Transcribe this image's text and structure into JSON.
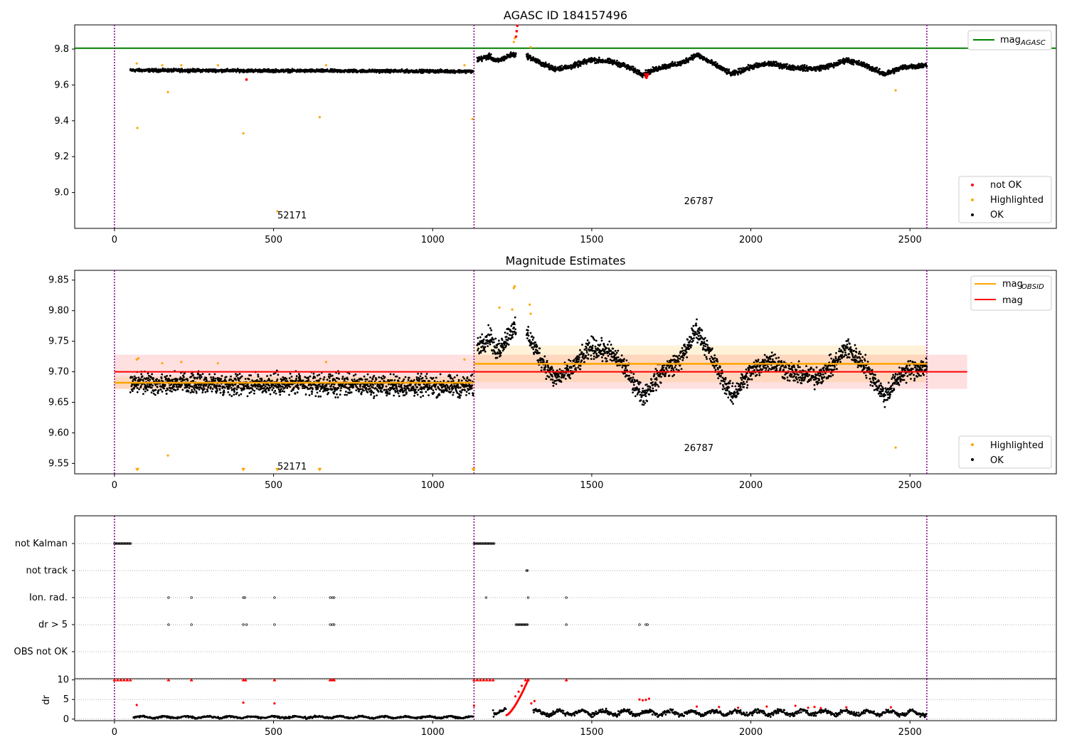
{
  "colors": {
    "ok": "#000000",
    "highlighted": "#ffa500",
    "not_ok": "#ff0000",
    "agasc_line": "#008000",
    "mag_line": "#ff0000",
    "obsid_line": "#ffa500",
    "obsid_vline": "#800080",
    "grid": "#b0b0b0"
  },
  "chart_data": [
    {
      "type": "scatter",
      "title": "AGASC ID 184157496",
      "xlabel": "",
      "ylabel": "",
      "xlim": [
        -125,
        2960
      ],
      "ylim": [
        8.8,
        9.935
      ],
      "xticks": [
        0,
        500,
        1000,
        1500,
        2000,
        2500
      ],
      "yticks": [
        9.0,
        9.2,
        9.4,
        9.6,
        9.8
      ],
      "ytick_labels": [
        "9.0",
        "9.2",
        "9.4",
        "9.6",
        "9.8"
      ],
      "hline": {
        "name": "mag_AGASC",
        "value": 9.805
      },
      "obsid_boundaries": [
        0,
        1130,
        2553
      ],
      "obsid_labels": [
        {
          "text": "52171",
          "x": 512,
          "y": 8.855
        },
        {
          "text": "26787",
          "x": 1790,
          "y": 8.935
        }
      ],
      "legend_upper": {
        "position": "upper right",
        "entries": [
          {
            "label": "mag",
            "sub": "AGASC"
          }
        ]
      },
      "legend_lower": {
        "position": "lower right",
        "entries": [
          "not OK",
          "Highlighted",
          "OK"
        ]
      },
      "series": [
        {
          "name": "not OK",
          "points": [
            [
              415,
              9.63
            ],
            [
              1262,
              9.87
            ],
            [
              1264,
              9.9
            ],
            [
              1266,
              9.93
            ],
            [
              1668,
              9.66
            ],
            [
              1670,
              9.645
            ],
            [
              1672,
              9.64
            ],
            [
              1674,
              9.65
            ],
            [
              1676,
              9.66
            ]
          ]
        },
        {
          "name": "Highlighted",
          "points": [
            [
              70,
              9.72
            ],
            [
              72,
              9.36
            ],
            [
              168,
              9.56
            ],
            [
              150,
              9.71
            ],
            [
              210,
              9.71
            ],
            [
              325,
              9.71
            ],
            [
              405,
              9.33
            ],
            [
              512,
              8.895
            ],
            [
              645,
              9.42
            ],
            [
              665,
              9.71
            ],
            [
              1100,
              9.71
            ],
            [
              1125,
              9.41
            ],
            [
              1255,
              9.84
            ],
            [
              1258,
              9.86
            ],
            [
              1308,
              9.81
            ],
            [
              2455,
              9.57
            ]
          ]
        },
        {
          "name": "OK",
          "segments": [
            {
              "x0": 50,
              "x1": 1128,
              "base": 9.682,
              "trend": -0.006,
              "amp": 0.007
            },
            {
              "x0": 1130,
              "x1": 2553,
              "base": 9.713,
              "wave": [
                [
                  1140,
                  9.74
                ],
                [
                  1180,
                  9.76
                ],
                [
                  1200,
                  9.73
                ],
                [
                  1250,
                  9.77
                ],
                [
                  1300,
                  9.76
                ],
                [
                  1330,
                  9.73
                ],
                [
                  1380,
                  9.69
                ],
                [
                  1430,
                  9.7
                ],
                [
                  1500,
                  9.74
                ],
                [
                  1560,
                  9.73
                ],
                [
                  1600,
                  9.71
                ],
                [
                  1660,
                  9.66
                ],
                [
                  1720,
                  9.7
                ],
                [
                  1780,
                  9.72
                ],
                [
                  1830,
                  9.77
                ],
                [
                  1880,
                  9.72
                ],
                [
                  1940,
                  9.66
                ],
                [
                  2000,
                  9.7
                ],
                [
                  2060,
                  9.72
                ],
                [
                  2120,
                  9.7
                ],
                [
                  2200,
                  9.69
                ],
                [
                  2260,
                  9.71
                ],
                [
                  2300,
                  9.74
                ],
                [
                  2360,
                  9.71
                ],
                [
                  2420,
                  9.66
                ],
                [
                  2480,
                  9.7
                ],
                [
                  2553,
                  9.71
                ]
              ],
              "amp": 0.012
            }
          ]
        }
      ]
    },
    {
      "type": "scatter",
      "title": "Magnitude Estimates",
      "xlabel": "",
      "ylabel": "",
      "xlim": [
        -125,
        2960
      ],
      "ylim": [
        9.533,
        9.866
      ],
      "xticks": [
        0,
        500,
        1000,
        1500,
        2000,
        2500
      ],
      "yticks": [
        9.55,
        9.6,
        9.65,
        9.7,
        9.75,
        9.8,
        9.85
      ],
      "ytick_labels": [
        "9.55",
        "9.60",
        "9.65",
        "9.70",
        "9.75",
        "9.80",
        "9.85"
      ],
      "mag": {
        "value": 9.7,
        "band": [
          9.672,
          9.728
        ],
        "x0": 0,
        "x1": 2680
      },
      "obsid_means": [
        {
          "value": 9.682,
          "band": [
            9.672,
            9.692
          ],
          "x0": 0,
          "x1": 1128
        },
        {
          "value": 9.713,
          "band": [
            9.683,
            9.743
          ],
          "x0": 1130,
          "x1": 2553
        }
      ],
      "obsid_boundaries": [
        0,
        1130,
        2553
      ],
      "obsid_labels": [
        {
          "text": "52171",
          "x": 512,
          "y": 9.54
        },
        {
          "text": "26787",
          "x": 1790,
          "y": 9.57
        }
      ],
      "legend_upper": {
        "position": "upper right",
        "entries": [
          {
            "label": "mag",
            "sub": "OBSID"
          },
          {
            "label": "mag",
            "sub": ""
          }
        ]
      },
      "legend_lower": {
        "position": "lower right",
        "entries": [
          "Highlighted",
          "OK"
        ]
      },
      "series": [
        {
          "name": "Highlighted",
          "points": [
            [
              70,
              9.72
            ],
            [
              75,
              9.722
            ],
            [
              168,
              9.563
            ],
            [
              150,
              9.714
            ],
            [
              210,
              9.716
            ],
            [
              325,
              9.714
            ],
            [
              665,
              9.716
            ],
            [
              1100,
              9.72
            ],
            [
              1210,
              9.805
            ],
            [
              1255,
              9.837
            ],
            [
              1258,
              9.84
            ],
            [
              1250,
              9.802
            ],
            [
              1305,
              9.81
            ],
            [
              1308,
              9.795
            ],
            [
              2455,
              9.576
            ]
          ]
        },
        {
          "name": "Highlighted below range",
          "points": [
            [
              72,
              9.538
            ],
            [
              405,
              9.538
            ],
            [
              512,
              9.538
            ],
            [
              645,
              9.538
            ],
            [
              1128,
              9.538
            ]
          ]
        },
        {
          "name": "OK",
          "segments": [
            {
              "x0": 50,
              "x1": 1128,
              "base": 9.682,
              "trend": -0.006,
              "amp": 0.014
            },
            {
              "x0": 1130,
              "x1": 2553,
              "wave": [
                [
                  1140,
                  9.74
                ],
                [
                  1180,
                  9.76
                ],
                [
                  1200,
                  9.73
                ],
                [
                  1250,
                  9.77
                ],
                [
                  1300,
                  9.76
                ],
                [
                  1330,
                  9.73
                ],
                [
                  1380,
                  9.69
                ],
                [
                  1430,
                  9.7
                ],
                [
                  1500,
                  9.74
                ],
                [
                  1560,
                  9.73
                ],
                [
                  1600,
                  9.71
                ],
                [
                  1660,
                  9.66
                ],
                [
                  1720,
                  9.7
                ],
                [
                  1780,
                  9.72
                ],
                [
                  1830,
                  9.77
                ],
                [
                  1880,
                  9.72
                ],
                [
                  1940,
                  9.66
                ],
                [
                  2000,
                  9.7
                ],
                [
                  2060,
                  9.72
                ],
                [
                  2120,
                  9.7
                ],
                [
                  2200,
                  9.69
                ],
                [
                  2260,
                  9.71
                ],
                [
                  2300,
                  9.74
                ],
                [
                  2360,
                  9.71
                ],
                [
                  2420,
                  9.66
                ],
                [
                  2480,
                  9.7
                ],
                [
                  2553,
                  9.71
                ]
              ],
              "amp": 0.014
            }
          ]
        }
      ]
    },
    {
      "type": "scatter",
      "title": "",
      "xlabel": "",
      "ylabel": "",
      "xlim": [
        -125,
        2960
      ],
      "categories": [
        "not Kalman",
        "not track",
        "Ion. rad.",
        "dr > 5",
        "OBS not OK"
      ],
      "obsid_boundaries": [
        0,
        1130,
        2553
      ],
      "flags": {
        "not Kalman": [
          [
            0,
            52
          ],
          [
            1130,
            1195
          ]
        ],
        "not track": [
          [
            1295,
            1300
          ]
        ],
        "Ion. rad.": [
          [
            170
          ],
          [
            242
          ],
          [
            405
          ],
          [
            410
          ],
          [
            503
          ],
          [
            678
          ],
          [
            685
          ],
          [
            690
          ],
          [
            1168
          ],
          [
            1300
          ],
          [
            1420
          ]
        ],
        "dr > 5": [
          [
            170
          ],
          [
            242
          ],
          [
            405
          ],
          [
            415
          ],
          [
            503
          ],
          [
            678
          ],
          [
            685
          ],
          [
            690
          ],
          [
            [
              1262,
              1300
            ]
          ],
          [
            1420
          ],
          [
            1650
          ],
          [
            1670
          ],
          [
            1675
          ]
        ],
        "OBS not OK": []
      }
    },
    {
      "type": "scatter",
      "title": "",
      "xlabel": "",
      "ylabel": "dr",
      "xlim": [
        -125,
        2960
      ],
      "ylim": [
        -0.4,
        10.3
      ],
      "yticks": [
        0,
        5,
        10
      ],
      "ytick_labels": [
        "0",
        "5",
        "10"
      ],
      "xticks": [
        0,
        500,
        1000,
        1500,
        2000,
        2500
      ],
      "series": [
        {
          "name": "dr > 5 (clipped)",
          "points": [
            [
              0,
              10
            ],
            [
              10,
              10
            ],
            [
              20,
              10
            ],
            [
              30,
              10
            ],
            [
              40,
              10
            ],
            [
              50,
              10
            ],
            [
              170,
              10
            ],
            [
              242,
              10
            ],
            [
              405,
              10
            ],
            [
              412,
              10
            ],
            [
              503,
              10
            ],
            [
              678,
              10
            ],
            [
              685,
              10
            ],
            [
              690,
              10
            ],
            [
              1130,
              10
            ],
            [
              1140,
              10
            ],
            [
              1150,
              10
            ],
            [
              1160,
              10
            ],
            [
              1170,
              10
            ],
            [
              1180,
              10
            ],
            [
              1190,
              10
            ],
            [
              1292,
              10
            ],
            [
              1300,
              10
            ],
            [
              1420,
              10
            ]
          ]
        },
        {
          "name": "dr mid red",
          "points": [
            [
              70,
              3.6
            ],
            [
              405,
              4.2
            ],
            [
              503,
              4.0
            ],
            [
              1130,
              3.4
            ],
            [
              1260,
              5.8
            ],
            [
              1270,
              7.0
            ],
            [
              1280,
              8.5
            ],
            [
              1310,
              4.0
            ],
            [
              1320,
              4.6
            ],
            [
              1650,
              5.0
            ],
            [
              1660,
              4.8
            ],
            [
              1670,
              4.9
            ],
            [
              1680,
              5.2
            ],
            [
              1830,
              3.2
            ],
            [
              1900,
              3.1
            ],
            [
              1960,
              2.9
            ],
            [
              2050,
              3.2
            ],
            [
              2140,
              3.4
            ],
            [
              2180,
              2.9
            ],
            [
              2200,
              3.1
            ],
            [
              2220,
              2.8
            ],
            [
              2300,
              3.0
            ],
            [
              2440,
              3.0
            ]
          ]
        },
        {
          "name": "dr OK",
          "segments": [
            {
              "x0": 60,
              "x1": 1128,
              "base": 0.5,
              "amp": 0.35
            },
            {
              "x0": 1190,
              "x1": 2553,
              "base": 1.6,
              "amp": 0.9
            }
          ]
        }
      ]
    }
  ]
}
